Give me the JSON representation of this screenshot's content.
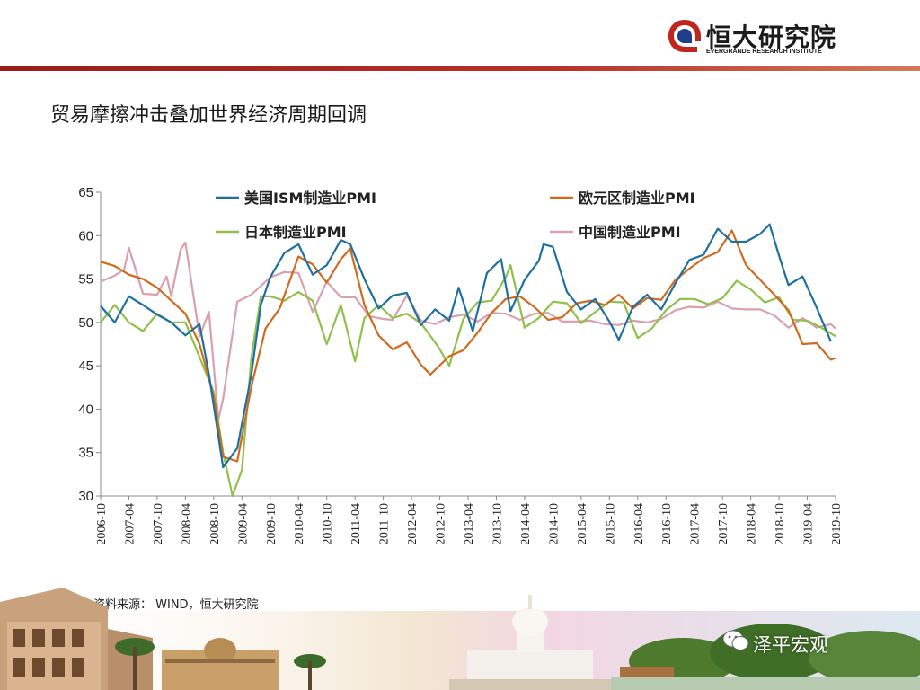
{
  "header": {
    "brand_cn": "恒大研究院",
    "brand_en": "EVERGRANDE RESEARCH INSTITUTE",
    "accent": "#b12a23"
  },
  "slide_title": "贸易摩擦冲击叠加世界经济周期回调",
  "source_text": "资料来源： WIND，恒大研究院",
  "watermark": "泽平宏观",
  "chart_data": {
    "type": "line",
    "title": "",
    "xlabel": "",
    "ylabel": "",
    "ylim": [
      30,
      65
    ],
    "yticks": [
      30,
      35,
      40,
      45,
      50,
      55,
      60,
      65
    ],
    "xticks": [
      "2006-10",
      "2007-04",
      "2007-10",
      "2008-04",
      "2008-10",
      "2009-04",
      "2009-10",
      "2010-04",
      "2010-10",
      "2011-04",
      "2011-10",
      "2012-04",
      "2012-10",
      "2013-04",
      "2013-10",
      "2014-04",
      "2014-10",
      "2015-04",
      "2015-10",
      "2016-04",
      "2016-10",
      "2017-04",
      "2017-10",
      "2018-04",
      "2018-10",
      "2019-04",
      "2019-10"
    ],
    "grid": false,
    "legend": "top",
    "x_start": "2006-10",
    "x_end": "2019-10",
    "series": [
      {
        "name": "美国ISM制造业PMI",
        "color": "#1f6fa0",
        "points": [
          [
            "2006-10",
            51.9
          ],
          [
            "2007-01",
            50.0
          ],
          [
            "2007-04",
            53.0
          ],
          [
            "2007-07",
            52.0
          ],
          [
            "2007-10",
            50.9
          ],
          [
            "2008-01",
            50.0
          ],
          [
            "2008-04",
            48.5
          ],
          [
            "2008-07",
            49.8
          ],
          [
            "2008-09",
            44.0
          ],
          [
            "2008-12",
            33.3
          ],
          [
            "2009-03",
            35.5
          ],
          [
            "2009-06",
            44.0
          ],
          [
            "2009-08",
            52.0
          ],
          [
            "2009-10",
            55.2
          ],
          [
            "2010-01",
            58.0
          ],
          [
            "2010-04",
            59.0
          ],
          [
            "2010-07",
            55.5
          ],
          [
            "2010-10",
            56.6
          ],
          [
            "2011-01",
            59.5
          ],
          [
            "2011-03",
            59.0
          ],
          [
            "2011-06",
            55.0
          ],
          [
            "2011-09",
            51.6
          ],
          [
            "2011-12",
            53.1
          ],
          [
            "2012-03",
            53.4
          ],
          [
            "2012-06",
            49.7
          ],
          [
            "2012-09",
            51.5
          ],
          [
            "2012-12",
            50.2
          ],
          [
            "2013-02",
            54.0
          ],
          [
            "2013-05",
            49.0
          ],
          [
            "2013-08",
            55.7
          ],
          [
            "2013-11",
            57.3
          ],
          [
            "2014-01",
            51.3
          ],
          [
            "2014-04",
            54.9
          ],
          [
            "2014-07",
            57.1
          ],
          [
            "2014-08",
            59.0
          ],
          [
            "2014-10",
            58.7
          ],
          [
            "2015-01",
            53.5
          ],
          [
            "2015-04",
            51.5
          ],
          [
            "2015-07",
            52.7
          ],
          [
            "2015-10",
            50.1
          ],
          [
            "2015-12",
            48.0
          ],
          [
            "2016-03",
            51.8
          ],
          [
            "2016-06",
            53.2
          ],
          [
            "2016-09",
            51.5
          ],
          [
            "2016-12",
            54.5
          ],
          [
            "2017-03",
            57.2
          ],
          [
            "2017-06",
            57.8
          ],
          [
            "2017-09",
            60.8
          ],
          [
            "2017-12",
            59.3
          ],
          [
            "2018-03",
            59.3
          ],
          [
            "2018-06",
            60.2
          ],
          [
            "2018-08",
            61.3
          ],
          [
            "2018-10",
            57.7
          ],
          [
            "2018-12",
            54.3
          ],
          [
            "2019-03",
            55.3
          ],
          [
            "2019-06",
            51.7
          ],
          [
            "2019-08",
            49.1
          ],
          [
            "2019-09",
            47.8
          ]
        ]
      },
      {
        "name": "欧元区制造业PMI",
        "color": "#d06a1e",
        "points": [
          [
            "2006-10",
            57.0
          ],
          [
            "2007-01",
            56.5
          ],
          [
            "2007-04",
            55.5
          ],
          [
            "2007-07",
            55.0
          ],
          [
            "2007-10",
            54.0
          ],
          [
            "2008-01",
            52.5
          ],
          [
            "2008-04",
            51.0
          ],
          [
            "2008-07",
            47.5
          ],
          [
            "2008-10",
            41.5
          ],
          [
            "2008-12",
            34.5
          ],
          [
            "2009-03",
            34.0
          ],
          [
            "2009-06",
            42.6
          ],
          [
            "2009-09",
            49.3
          ],
          [
            "2009-12",
            51.6
          ],
          [
            "2010-04",
            57.6
          ],
          [
            "2010-07",
            56.7
          ],
          [
            "2010-10",
            54.6
          ],
          [
            "2011-01",
            57.3
          ],
          [
            "2011-03",
            58.5
          ],
          [
            "2011-06",
            52.0
          ],
          [
            "2011-09",
            48.5
          ],
          [
            "2011-12",
            46.9
          ],
          [
            "2012-03",
            47.7
          ],
          [
            "2012-06",
            45.1
          ],
          [
            "2012-08",
            44.0
          ],
          [
            "2012-12",
            46.1
          ],
          [
            "2013-03",
            46.8
          ],
          [
            "2013-06",
            48.8
          ],
          [
            "2013-09",
            51.1
          ],
          [
            "2013-12",
            52.7
          ],
          [
            "2014-03",
            53.0
          ],
          [
            "2014-06",
            51.8
          ],
          [
            "2014-09",
            50.3
          ],
          [
            "2014-12",
            50.6
          ],
          [
            "2015-03",
            52.2
          ],
          [
            "2015-06",
            52.5
          ],
          [
            "2015-09",
            52.0
          ],
          [
            "2015-12",
            53.2
          ],
          [
            "2016-03",
            51.6
          ],
          [
            "2016-06",
            52.8
          ],
          [
            "2016-09",
            52.6
          ],
          [
            "2016-12",
            54.9
          ],
          [
            "2017-03",
            56.2
          ],
          [
            "2017-06",
            57.4
          ],
          [
            "2017-09",
            58.1
          ],
          [
            "2017-12",
            60.6
          ],
          [
            "2018-03",
            56.6
          ],
          [
            "2018-06",
            54.9
          ],
          [
            "2018-09",
            53.2
          ],
          [
            "2018-12",
            51.4
          ],
          [
            "2019-03",
            47.5
          ],
          [
            "2019-06",
            47.6
          ],
          [
            "2019-09",
            45.7
          ],
          [
            "2019-10",
            45.9
          ]
        ]
      },
      {
        "name": "日本制造业PMI",
        "color": "#8fc04a",
        "points": [
          [
            "2006-10",
            50.0
          ],
          [
            "2007-01",
            52.0
          ],
          [
            "2007-04",
            50.0
          ],
          [
            "2007-07",
            49.0
          ],
          [
            "2007-10",
            51.0
          ],
          [
            "2008-01",
            50.0
          ],
          [
            "2008-04",
            50.0
          ],
          [
            "2008-07",
            46.0
          ],
          [
            "2008-10",
            42.0
          ],
          [
            "2008-12",
            35.0
          ],
          [
            "2009-02",
            30.0
          ],
          [
            "2009-04",
            33.0
          ],
          [
            "2009-06",
            46.0
          ],
          [
            "2009-08",
            53.0
          ],
          [
            "2009-10",
            53.0
          ],
          [
            "2010-01",
            52.5
          ],
          [
            "2010-04",
            53.5
          ],
          [
            "2010-07",
            52.5
          ],
          [
            "2010-10",
            47.5
          ],
          [
            "2011-01",
            52.0
          ],
          [
            "2011-04",
            45.5
          ],
          [
            "2011-06",
            50.5
          ],
          [
            "2011-09",
            52.0
          ],
          [
            "2011-12",
            50.5
          ],
          [
            "2012-03",
            51.0
          ],
          [
            "2012-06",
            49.9
          ],
          [
            "2012-09",
            47.7
          ],
          [
            "2012-10",
            46.9
          ],
          [
            "2012-12",
            45.0
          ],
          [
            "2013-03",
            50.4
          ],
          [
            "2013-06",
            52.3
          ],
          [
            "2013-09",
            52.5
          ],
          [
            "2013-12",
            55.2
          ],
          [
            "2014-01",
            56.6
          ],
          [
            "2014-04",
            49.4
          ],
          [
            "2014-07",
            50.5
          ],
          [
            "2014-10",
            52.4
          ],
          [
            "2015-01",
            52.2
          ],
          [
            "2015-04",
            49.9
          ],
          [
            "2015-07",
            51.2
          ],
          [
            "2015-10",
            52.4
          ],
          [
            "2016-01",
            52.3
          ],
          [
            "2016-04",
            48.2
          ],
          [
            "2016-07",
            49.3
          ],
          [
            "2016-10",
            51.4
          ],
          [
            "2017-01",
            52.7
          ],
          [
            "2017-04",
            52.7
          ],
          [
            "2017-07",
            52.1
          ],
          [
            "2017-10",
            52.8
          ],
          [
            "2018-01",
            54.8
          ],
          [
            "2018-04",
            53.8
          ],
          [
            "2018-07",
            52.3
          ],
          [
            "2018-10",
            52.9
          ],
          [
            "2019-01",
            50.3
          ],
          [
            "2019-04",
            50.2
          ],
          [
            "2019-07",
            49.4
          ],
          [
            "2019-10",
            48.4
          ]
        ]
      },
      {
        "name": "中国制造业PMI",
        "color": "#d9a1ad",
        "points": [
          [
            "2006-10",
            54.7
          ],
          [
            "2007-01",
            55.4
          ],
          [
            "2007-03",
            56.1
          ],
          [
            "2007-04",
            58.6
          ],
          [
            "2007-07",
            53.3
          ],
          [
            "2007-10",
            53.2
          ],
          [
            "2007-12",
            55.3
          ],
          [
            "2008-01",
            53.0
          ],
          [
            "2008-03",
            58.4
          ],
          [
            "2008-04",
            59.2
          ],
          [
            "2008-07",
            48.4
          ],
          [
            "2008-09",
            51.2
          ],
          [
            "2008-11",
            38.8
          ],
          [
            "2008-12",
            41.2
          ],
          [
            "2009-03",
            52.4
          ],
          [
            "2009-06",
            53.2
          ],
          [
            "2009-10",
            55.2
          ],
          [
            "2010-01",
            55.8
          ],
          [
            "2010-04",
            55.7
          ],
          [
            "2010-07",
            51.2
          ],
          [
            "2010-10",
            54.7
          ],
          [
            "2011-01",
            52.9
          ],
          [
            "2011-04",
            52.9
          ],
          [
            "2011-07",
            50.7
          ],
          [
            "2011-10",
            50.4
          ],
          [
            "2011-12",
            50.3
          ],
          [
            "2012-03",
            53.1
          ],
          [
            "2012-06",
            50.2
          ],
          [
            "2012-09",
            49.8
          ],
          [
            "2012-12",
            50.6
          ],
          [
            "2013-03",
            50.9
          ],
          [
            "2013-06",
            50.1
          ],
          [
            "2013-09",
            51.1
          ],
          [
            "2013-12",
            51.0
          ],
          [
            "2014-03",
            50.3
          ],
          [
            "2014-06",
            51.0
          ],
          [
            "2014-09",
            51.1
          ],
          [
            "2014-12",
            50.1
          ],
          [
            "2015-03",
            50.1
          ],
          [
            "2015-06",
            50.2
          ],
          [
            "2015-09",
            49.8
          ],
          [
            "2015-12",
            49.7
          ],
          [
            "2016-03",
            50.2
          ],
          [
            "2016-06",
            50.0
          ],
          [
            "2016-09",
            50.4
          ],
          [
            "2016-12",
            51.4
          ],
          [
            "2017-03",
            51.8
          ],
          [
            "2017-06",
            51.7
          ],
          [
            "2017-09",
            52.4
          ],
          [
            "2017-12",
            51.6
          ],
          [
            "2018-03",
            51.5
          ],
          [
            "2018-06",
            51.5
          ],
          [
            "2018-09",
            50.8
          ],
          [
            "2018-12",
            49.4
          ],
          [
            "2019-03",
            50.5
          ],
          [
            "2019-06",
            49.4
          ],
          [
            "2019-09",
            49.8
          ],
          [
            "2019-10",
            49.3
          ]
        ]
      }
    ]
  }
}
